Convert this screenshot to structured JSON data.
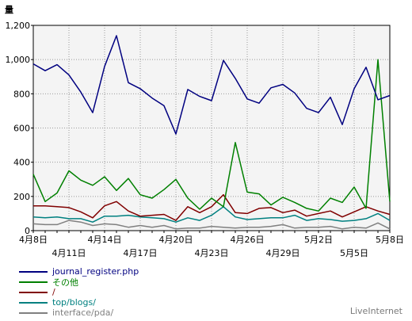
{
  "chart_data": {
    "type": "line",
    "ylabel": "量",
    "ylim": [
      0,
      1200
    ],
    "yticks": [
      "0",
      "200",
      "400",
      "600",
      "800",
      "1,000",
      "1,200"
    ],
    "xtick_labels_top": [
      "4月8日",
      "4月14日",
      "4月20日",
      "4月26日",
      "5月2日",
      "5月8日"
    ],
    "xtick_labels_bottom": [
      "4月11日",
      "4月17日",
      "4月23日",
      "4月29日",
      "5月5日"
    ],
    "grid": true,
    "legend_position": "bottom-left",
    "series": [
      {
        "name": "journal_register.php",
        "color": "#000080",
        "values": [
          975,
          935,
          970,
          910,
          810,
          690,
          960,
          1140,
          865,
          830,
          775,
          730,
          565,
          825,
          785,
          760,
          995,
          890,
          770,
          745,
          835,
          855,
          805,
          715,
          690,
          780,
          620,
          830,
          955,
          765,
          790
        ]
      },
      {
        "name": "その他",
        "color": "#008000",
        "values": [
          330,
          170,
          220,
          350,
          295,
          265,
          315,
          235,
          305,
          210,
          190,
          240,
          300,
          190,
          125,
          190,
          140,
          515,
          225,
          215,
          150,
          195,
          165,
          130,
          115,
          190,
          165,
          255,
          130,
          1000,
          170
        ]
      },
      {
        "name": "/",
        "color": "#800000",
        "values": [
          145,
          145,
          140,
          135,
          110,
          75,
          145,
          170,
          115,
          85,
          90,
          95,
          60,
          140,
          105,
          140,
          210,
          105,
          100,
          130,
          135,
          105,
          120,
          85,
          100,
          115,
          80,
          110,
          140,
          115,
          95
        ]
      },
      {
        "name": "top/blogs/",
        "color": "#008080",
        "values": [
          80,
          75,
          80,
          70,
          70,
          50,
          85,
          85,
          90,
          80,
          75,
          70,
          50,
          75,
          60,
          90,
          140,
          80,
          65,
          70,
          75,
          75,
          90,
          60,
          70,
          65,
          55,
          60,
          70,
          100,
          60
        ]
      },
      {
        "name": "interface/pda/",
        "color": "#808080",
        "values": [
          40,
          35,
          35,
          60,
          50,
          30,
          40,
          35,
          20,
          30,
          20,
          30,
          10,
          15,
          15,
          25,
          20,
          15,
          20,
          20,
          25,
          35,
          15,
          20,
          20,
          25,
          10,
          20,
          15,
          45,
          10
        ]
      }
    ]
  },
  "footer": {
    "brand": "LiveInternet"
  }
}
